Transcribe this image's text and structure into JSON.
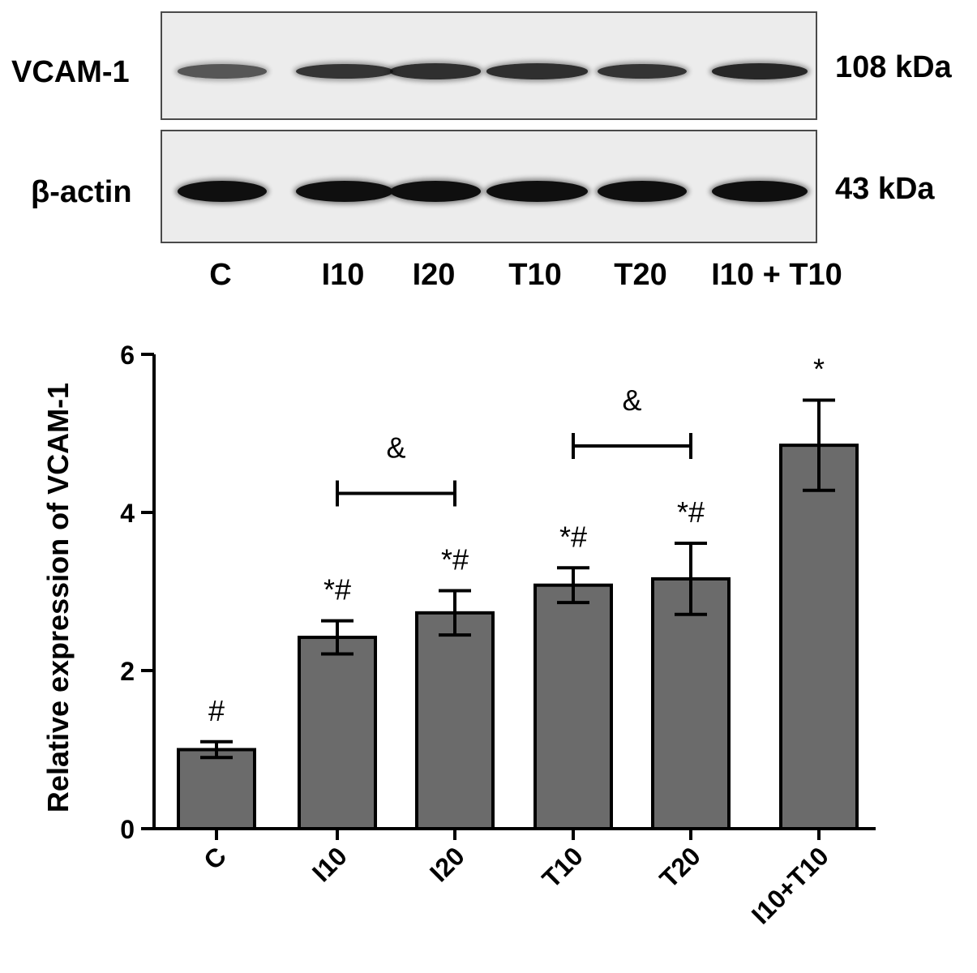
{
  "blot": {
    "rows": [
      {
        "protein": "VCAM-1",
        "size": "108 kDa",
        "band_intensity": [
          0.55,
          0.8,
          0.85,
          0.85,
          0.8,
          0.9
        ]
      },
      {
        "protein": "β-actin",
        "size": "43 kDa",
        "band_intensity": [
          1,
          1,
          1,
          1,
          1,
          1
        ]
      }
    ],
    "lanes": [
      "C",
      "I10",
      "I20",
      "T10",
      "T20",
      "I10 + T10"
    ]
  },
  "chart_data": {
    "type": "bar",
    "categories": [
      "C",
      "I10",
      "I20",
      "T10",
      "T20",
      "I10+T10"
    ],
    "values": [
      1.0,
      2.42,
      2.73,
      3.08,
      3.16,
      4.85
    ],
    "errors": [
      0.1,
      0.21,
      0.28,
      0.22,
      0.45,
      0.57
    ],
    "annotations": [
      "#",
      "*#",
      "*#",
      "*#",
      "*#",
      "*"
    ],
    "brackets": [
      {
        "from": "I10",
        "to": "I20",
        "label": "&"
      },
      {
        "from": "T10",
        "to": "T20",
        "label": "&"
      }
    ],
    "ylabel": "Relative expression of VCAM-1",
    "xlabel": "",
    "ylim": [
      0,
      6
    ],
    "yticks": [
      0,
      2,
      4,
      6
    ],
    "bar_color": "#6b6b6b",
    "grid": false
  }
}
